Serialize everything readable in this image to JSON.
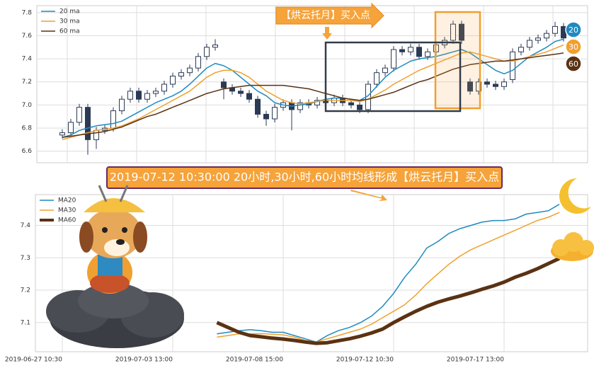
{
  "chart_data": [
    {
      "type": "candlestick",
      "annotation": "【烘云托月】买入点",
      "up_color": "#2b3a55",
      "down_color": "#2b3a55",
      "open": [
        6.74,
        6.76,
        6.85,
        6.98,
        6.7,
        6.78,
        6.8,
        6.95,
        7.05,
        7.12,
        7.05,
        7.1,
        7.12,
        7.18,
        7.25,
        7.28,
        7.32,
        7.42,
        7.5,
        7.2,
        7.15,
        7.12,
        7.1,
        7.05,
        6.92,
        6.88,
        6.98,
        7.02,
        6.96,
        7.02,
        7.0,
        7.04,
        7.02,
        7.06,
        7.02,
        7.0,
        6.96,
        7.18,
        7.28,
        7.32,
        7.48,
        7.46,
        7.5,
        7.42,
        7.46,
        7.52,
        7.56,
        7.7,
        7.2,
        7.12,
        7.2,
        7.18,
        7.16,
        7.22,
        7.46,
        7.5,
        7.56,
        7.58,
        7.62,
        7.68
      ],
      "high": [
        6.79,
        6.88,
        7.01,
        7.01,
        6.81,
        6.83,
        6.98,
        7.08,
        7.15,
        7.15,
        7.13,
        7.15,
        7.21,
        7.28,
        7.31,
        7.35,
        7.45,
        7.53,
        7.57,
        7.23,
        7.18,
        7.15,
        7.13,
        7.08,
        6.95,
        7.01,
        7.05,
        7.05,
        7.05,
        7.05,
        7.07,
        7.07,
        7.09,
        7.09,
        7.05,
        7.03,
        7.21,
        7.31,
        7.35,
        7.51,
        7.51,
        7.53,
        7.53,
        7.49,
        7.55,
        7.59,
        7.73,
        7.73,
        7.23,
        7.23,
        7.23,
        7.21,
        7.23,
        7.49,
        7.53,
        7.59,
        7.61,
        7.65,
        7.72,
        7.71
      ],
      "low": [
        6.71,
        6.73,
        6.82,
        6.57,
        6.62,
        6.75,
        6.77,
        6.92,
        7.02,
        7.02,
        7.02,
        7.07,
        7.09,
        7.15,
        7.22,
        7.25,
        7.29,
        7.39,
        7.47,
        7.05,
        7.09,
        7.07,
        7.02,
        6.89,
        6.82,
        6.85,
        6.95,
        6.78,
        6.93,
        6.97,
        6.97,
        6.99,
        6.99,
        6.99,
        6.97,
        6.93,
        6.93,
        7.15,
        7.25,
        7.29,
        7.43,
        7.43,
        7.39,
        7.39,
        7.43,
        7.49,
        7.53,
        7.53,
        7.09,
        7.09,
        7.15,
        7.13,
        7.13,
        7.19,
        7.43,
        7.47,
        7.53,
        7.55,
        7.59,
        7.55
      ],
      "close": [
        6.76,
        6.85,
        6.98,
        6.7,
        6.78,
        6.8,
        6.95,
        7.05,
        7.12,
        7.05,
        7.1,
        7.12,
        7.18,
        7.25,
        7.28,
        7.32,
        7.42,
        7.5,
        7.52,
        7.15,
        7.12,
        7.1,
        7.05,
        6.92,
        6.88,
        6.98,
        7.02,
        6.96,
        7.02,
        7.0,
        7.04,
        7.02,
        7.06,
        7.02,
        7.0,
        6.96,
        7.18,
        7.28,
        7.32,
        7.48,
        7.46,
        7.5,
        7.42,
        7.46,
        7.52,
        7.56,
        7.7,
        7.56,
        7.12,
        7.2,
        7.18,
        7.16,
        7.2,
        7.46,
        7.5,
        7.56,
        7.58,
        7.62,
        7.68,
        7.58
      ],
      "series": [
        {
          "name": "20 ma",
          "color": "#1f8ac0",
          "values": [
            6.72,
            6.74,
            6.78,
            6.8,
            6.82,
            6.83,
            6.84,
            6.86,
            6.9,
            6.94,
            6.98,
            7.02,
            7.05,
            7.08,
            7.12,
            7.18,
            7.25,
            7.32,
            7.36,
            7.34,
            7.3,
            7.24,
            7.18,
            7.12,
            7.08,
            7.02,
            7.0,
            6.99,
            7.0,
            7.01,
            7.03,
            7.05,
            7.06,
            7.06,
            7.05,
            7.04,
            7.08,
            7.16,
            7.24,
            7.3,
            7.34,
            7.38,
            7.4,
            7.41,
            7.42,
            7.44,
            7.46,
            7.48,
            7.45,
            7.4,
            7.35,
            7.3,
            7.27,
            7.3,
            7.36,
            7.42,
            7.46,
            7.5,
            7.55,
            7.57
          ]
        },
        {
          "name": "30 ma",
          "color": "#f0a030",
          "values": [
            6.7,
            6.72,
            6.74,
            6.76,
            6.78,
            6.79,
            6.8,
            6.82,
            6.85,
            6.88,
            6.92,
            6.96,
            7.0,
            7.04,
            7.08,
            7.12,
            7.18,
            7.24,
            7.28,
            7.3,
            7.3,
            7.28,
            7.24,
            7.18,
            7.12,
            7.08,
            7.04,
            7.02,
            7.01,
            7.02,
            7.03,
            7.04,
            7.04,
            7.04,
            7.04,
            7.03,
            7.05,
            7.09,
            7.13,
            7.18,
            7.22,
            7.26,
            7.3,
            7.33,
            7.36,
            7.39,
            7.42,
            7.45,
            7.46,
            7.44,
            7.42,
            7.4,
            7.38,
            7.38,
            7.4,
            7.42,
            7.44,
            7.46,
            7.49,
            7.52
          ]
        },
        {
          "name": "60 ma",
          "color": "#5a3213",
          "values": [
            6.72,
            6.73,
            6.74,
            6.75,
            6.76,
            6.77,
            6.79,
            6.81,
            6.84,
            6.87,
            6.9,
            6.92,
            6.95,
            6.98,
            7.01,
            7.04,
            7.07,
            7.1,
            7.12,
            7.14,
            7.15,
            7.16,
            7.17,
            7.17,
            7.17,
            7.17,
            7.17,
            7.16,
            7.15,
            7.14,
            7.12,
            7.1,
            7.08,
            7.06,
            7.05,
            7.04,
            7.05,
            7.07,
            7.09,
            7.11,
            7.14,
            7.17,
            7.2,
            7.22,
            7.25,
            7.28,
            7.31,
            7.33,
            7.35,
            7.36,
            7.37,
            7.38,
            7.38,
            7.39,
            7.4,
            7.41,
            7.42,
            7.43,
            7.44,
            7.45
          ]
        }
      ],
      "end_labels": [
        "20",
        "30",
        "60"
      ],
      "ylim": [
        6.5,
        7.86
      ],
      "yticks": [
        6.6,
        6.8,
        {
          "value": 7,
          "label": "7.0"
        },
        7.2,
        7.4,
        7.6,
        7.8
      ],
      "grid": true,
      "legend": "upper left"
    },
    {
      "type": "line",
      "annotation": "2019-07-12 10:30:00 20小时,30小时,60小时均线形成【烘云托月】买入点",
      "categories": [
        "2019-06-27 10:30",
        null,
        null,
        null,
        null,
        null,
        null,
        null,
        null,
        null,
        "2019-07-03 13:00",
        null,
        null,
        null,
        null,
        null,
        null,
        null,
        null,
        null,
        "2019-07-08 15:00",
        null,
        null,
        null,
        null,
        null,
        null,
        null,
        null,
        null,
        "2019-07-12 10:30",
        null,
        null,
        null,
        null,
        null,
        null,
        null,
        null,
        null,
        "2019-07-17 13:00",
        null,
        null,
        null,
        null,
        null
      ],
      "series": [
        {
          "name": "MA20",
          "color": "#1f8ac0",
          "width": 1.5,
          "values": [
            null,
            null,
            null,
            null,
            null,
            null,
            null,
            null,
            null,
            null,
            null,
            null,
            null,
            null,
            7.065,
            7.07,
            7.075,
            7.078,
            7.075,
            7.07,
            7.07,
            7.06,
            7.05,
            7.04,
            7.06,
            7.075,
            7.085,
            7.1,
            7.12,
            7.15,
            7.19,
            7.24,
            7.28,
            7.33,
            7.35,
            7.375,
            7.39,
            7.4,
            7.41,
            7.415,
            7.415,
            7.42,
            7.435,
            7.44,
            7.445,
            7.465
          ]
        },
        {
          "name": "MA30",
          "color": "#f0a030",
          "width": 1.5,
          "values": [
            null,
            null,
            null,
            null,
            null,
            null,
            null,
            null,
            null,
            null,
            null,
            null,
            null,
            null,
            7.055,
            7.06,
            7.065,
            7.065,
            7.066,
            7.064,
            7.062,
            7.055,
            7.045,
            7.04,
            7.05,
            7.06,
            7.07,
            7.08,
            7.095,
            7.115,
            7.135,
            7.155,
            7.185,
            7.22,
            7.25,
            7.28,
            7.305,
            7.325,
            7.34,
            7.355,
            7.37,
            7.385,
            7.4,
            7.415,
            7.425,
            7.44
          ]
        },
        {
          "name": "MA60",
          "color": "#5a3213",
          "width": 5,
          "values": [
            null,
            null,
            null,
            null,
            null,
            null,
            null,
            null,
            null,
            null,
            null,
            null,
            null,
            null,
            7.1,
            7.085,
            7.07,
            7.06,
            7.056,
            7.052,
            7.049,
            7.045,
            7.04,
            7.036,
            7.038,
            7.044,
            7.05,
            7.058,
            7.068,
            7.08,
            7.1,
            7.118,
            7.135,
            7.15,
            7.163,
            7.173,
            7.182,
            7.192,
            7.203,
            7.213,
            7.225,
            7.24,
            7.252,
            7.266,
            7.282,
            7.298
          ]
        }
      ],
      "ylim": [
        7.01,
        7.495
      ],
      "yticks": [
        7.1,
        7.2,
        7.3,
        7.4
      ],
      "grid": true,
      "legend": "upper left"
    }
  ]
}
